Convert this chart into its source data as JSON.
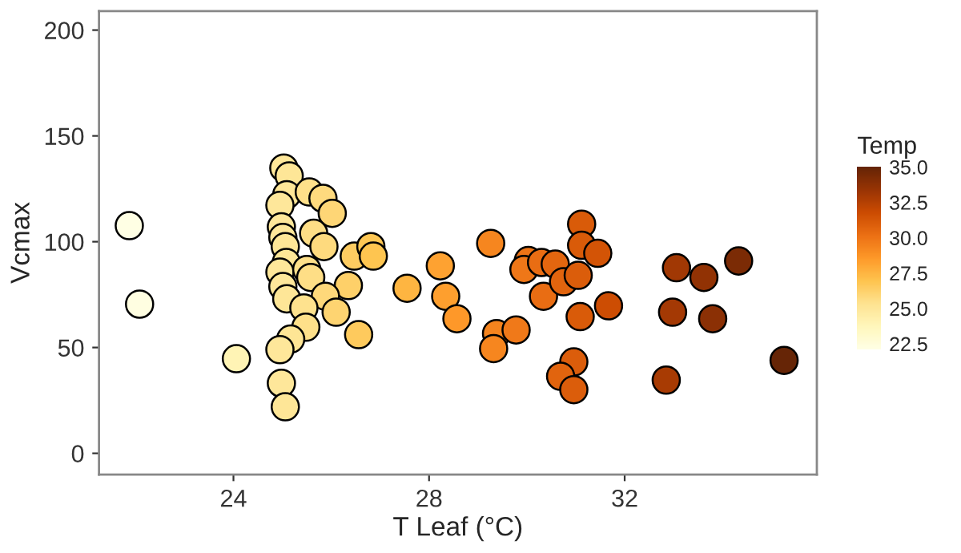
{
  "chart_data": {
    "type": "scatter",
    "xlabel": "T Leaf (°C)",
    "ylabel": "Vcmax",
    "clabel": "Temp",
    "xlim": [
      21.25,
      35.93
    ],
    "ylim": [
      -10,
      209
    ],
    "xticks": [
      24,
      28,
      32
    ],
    "yticks": [
      0,
      50,
      100,
      150,
      200
    ],
    "clim": [
      22.1,
      35.0
    ],
    "cticks": [
      22.5,
      {
        "value": 25,
        "label": "25.0"
      },
      27.5,
      {
        "value": 30,
        "label": "30.0"
      },
      32.5,
      {
        "value": 35,
        "label": "35.0"
      }
    ],
    "grid": false,
    "marker": "circle",
    "x": [
      21.87,
      22.08,
      24.06,
      25.03,
      25.14,
      25.09,
      24.95,
      25.55,
      25.83,
      26.02,
      24.98,
      25.01,
      25.64,
      25.85,
      25.06,
      25.08,
      24.95,
      25.5,
      25.58,
      25.01,
      25.09,
      26.35,
      25.88,
      25.44,
      26.1,
      25.48,
      25.17,
      24.95,
      26.56,
      24.98,
      25.06,
      26.47,
      26.81,
      26.86,
      27.55,
      28.23,
      28.34,
      28.57,
      29.26,
      29.38,
      29.32,
      29.78,
      30.03,
      29.94,
      30.3,
      30.58,
      30.34,
      30.75,
      31.05,
      31.12,
      31.12,
      31.45,
      31.09,
      31.67,
      30.96,
      30.69,
      30.96,
      33.06,
      33.62,
      34.33,
      32.98,
      33.8,
      32.85,
      35.26
    ],
    "values": [
      107.6,
      70.5,
      44.7,
      134.8,
      131.1,
      122.2,
      117.2,
      123.5,
      120.5,
      113.4,
      107.0,
      102.0,
      104.0,
      97.7,
      97.7,
      90.2,
      85.6,
      86.9,
      83.1,
      78.8,
      73.0,
      79.3,
      74.2,
      68.7,
      66.7,
      59.6,
      54.0,
      49.0,
      56.1,
      33.1,
      22.0,
      93.2,
      97.7,
      93.2,
      78.0,
      88.6,
      74.2,
      63.6,
      99.2,
      56.6,
      49.5,
      58.3,
      91.1,
      86.9,
      90.2,
      89.4,
      74.2,
      81.1,
      84.1,
      108.3,
      98.3,
      94.5,
      64.6,
      69.7,
      43.2,
      36.4,
      30.1,
      87.7,
      83.1,
      90.9,
      66.7,
      63.6,
      34.6,
      43.9
    ],
    "cvalues": [
      22.2,
      22.3,
      24.0,
      25.0,
      25.1,
      25.1,
      25.0,
      25.5,
      25.8,
      26.0,
      25.0,
      25.0,
      25.6,
      25.8,
      25.1,
      25.1,
      25.0,
      25.5,
      25.6,
      25.0,
      25.1,
      26.3,
      25.9,
      25.4,
      26.1,
      25.5,
      25.2,
      25.0,
      26.6,
      25.0,
      25.1,
      26.5,
      26.8,
      26.9,
      27.5,
      28.2,
      28.3,
      28.6,
      29.3,
      29.4,
      29.3,
      29.8,
      30.0,
      29.9,
      30.3,
      30.6,
      30.3,
      30.7,
      31.0,
      31.1,
      31.1,
      31.4,
      31.1,
      31.7,
      31.0,
      30.7,
      31.0,
      33.1,
      33.6,
      34.3,
      33.0,
      33.8,
      32.9,
      35.0
    ]
  }
}
